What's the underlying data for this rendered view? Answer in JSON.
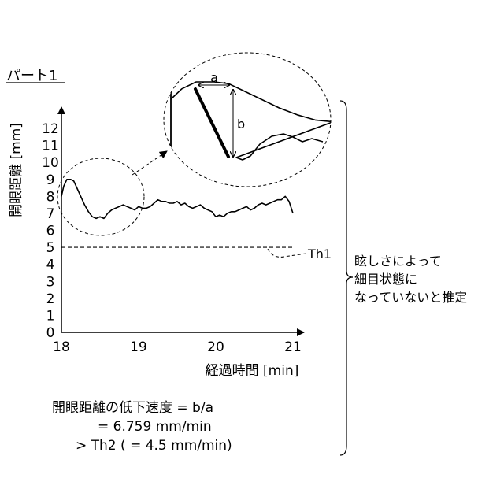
{
  "figure_title": "パート1",
  "chart_data": {
    "type": "line",
    "ylabel": "開眼距離 [mm]",
    "xlabel": "経過時間 [min]",
    "xlim": [
      18,
      21
    ],
    "ylim": [
      0,
      13
    ],
    "x_ticks": [
      "18",
      "19",
      "20",
      "21"
    ],
    "y_ticks": [
      "0",
      "1",
      "2",
      "3",
      "4",
      "5",
      "6",
      "7",
      "8",
      "9",
      "10",
      "11",
      "12"
    ],
    "series": [
      {
        "x": [
          18.0,
          18.03,
          18.07,
          18.12,
          18.16,
          18.2,
          18.25,
          18.3,
          18.35,
          18.4,
          18.45,
          18.5,
          18.55,
          18.6,
          18.65,
          18.7,
          18.75,
          18.8,
          18.85,
          18.9,
          18.95,
          19.0,
          19.05,
          19.1,
          19.15,
          19.2,
          19.25,
          19.3,
          19.35,
          19.4,
          19.45,
          19.5,
          19.55,
          19.6,
          19.65,
          19.7,
          19.75,
          19.8,
          19.85,
          19.9,
          19.95,
          20.0,
          20.05,
          20.1,
          20.15,
          20.2,
          20.25,
          20.3,
          20.35,
          20.4,
          20.45,
          20.5,
          20.55,
          20.6,
          20.65,
          20.7,
          20.75,
          20.8,
          20.85,
          20.9,
          20.95,
          21.0
        ],
        "y": [
          8.0,
          8.6,
          9.0,
          9.0,
          8.9,
          8.5,
          8.0,
          7.5,
          7.1,
          6.8,
          6.7,
          6.8,
          6.7,
          7.0,
          7.2,
          7.3,
          7.4,
          7.5,
          7.4,
          7.3,
          7.2,
          7.4,
          7.3,
          7.3,
          7.4,
          7.6,
          7.8,
          7.7,
          7.7,
          7.6,
          7.6,
          7.7,
          7.5,
          7.6,
          7.4,
          7.3,
          7.4,
          7.5,
          7.3,
          7.2,
          7.1,
          6.8,
          6.9,
          6.8,
          7.0,
          7.1,
          7.1,
          7.2,
          7.3,
          7.4,
          7.2,
          7.3,
          7.5,
          7.6,
          7.5,
          7.6,
          7.7,
          7.8,
          7.8,
          8.0,
          7.7,
          7.0
        ]
      }
    ],
    "threshold": {
      "value": 5,
      "label": "Th1"
    },
    "inset_labels": {
      "a": "a",
      "b": "b"
    }
  },
  "bracket_note": [
    "眩しさによって",
    "細目状態に",
    "なっていないと推定"
  ],
  "formula": [
    "開眼距離の低下速度 = b/a",
    "= 6.759 mm/min",
    "> Th2 ( = 4.5 mm/min)"
  ]
}
